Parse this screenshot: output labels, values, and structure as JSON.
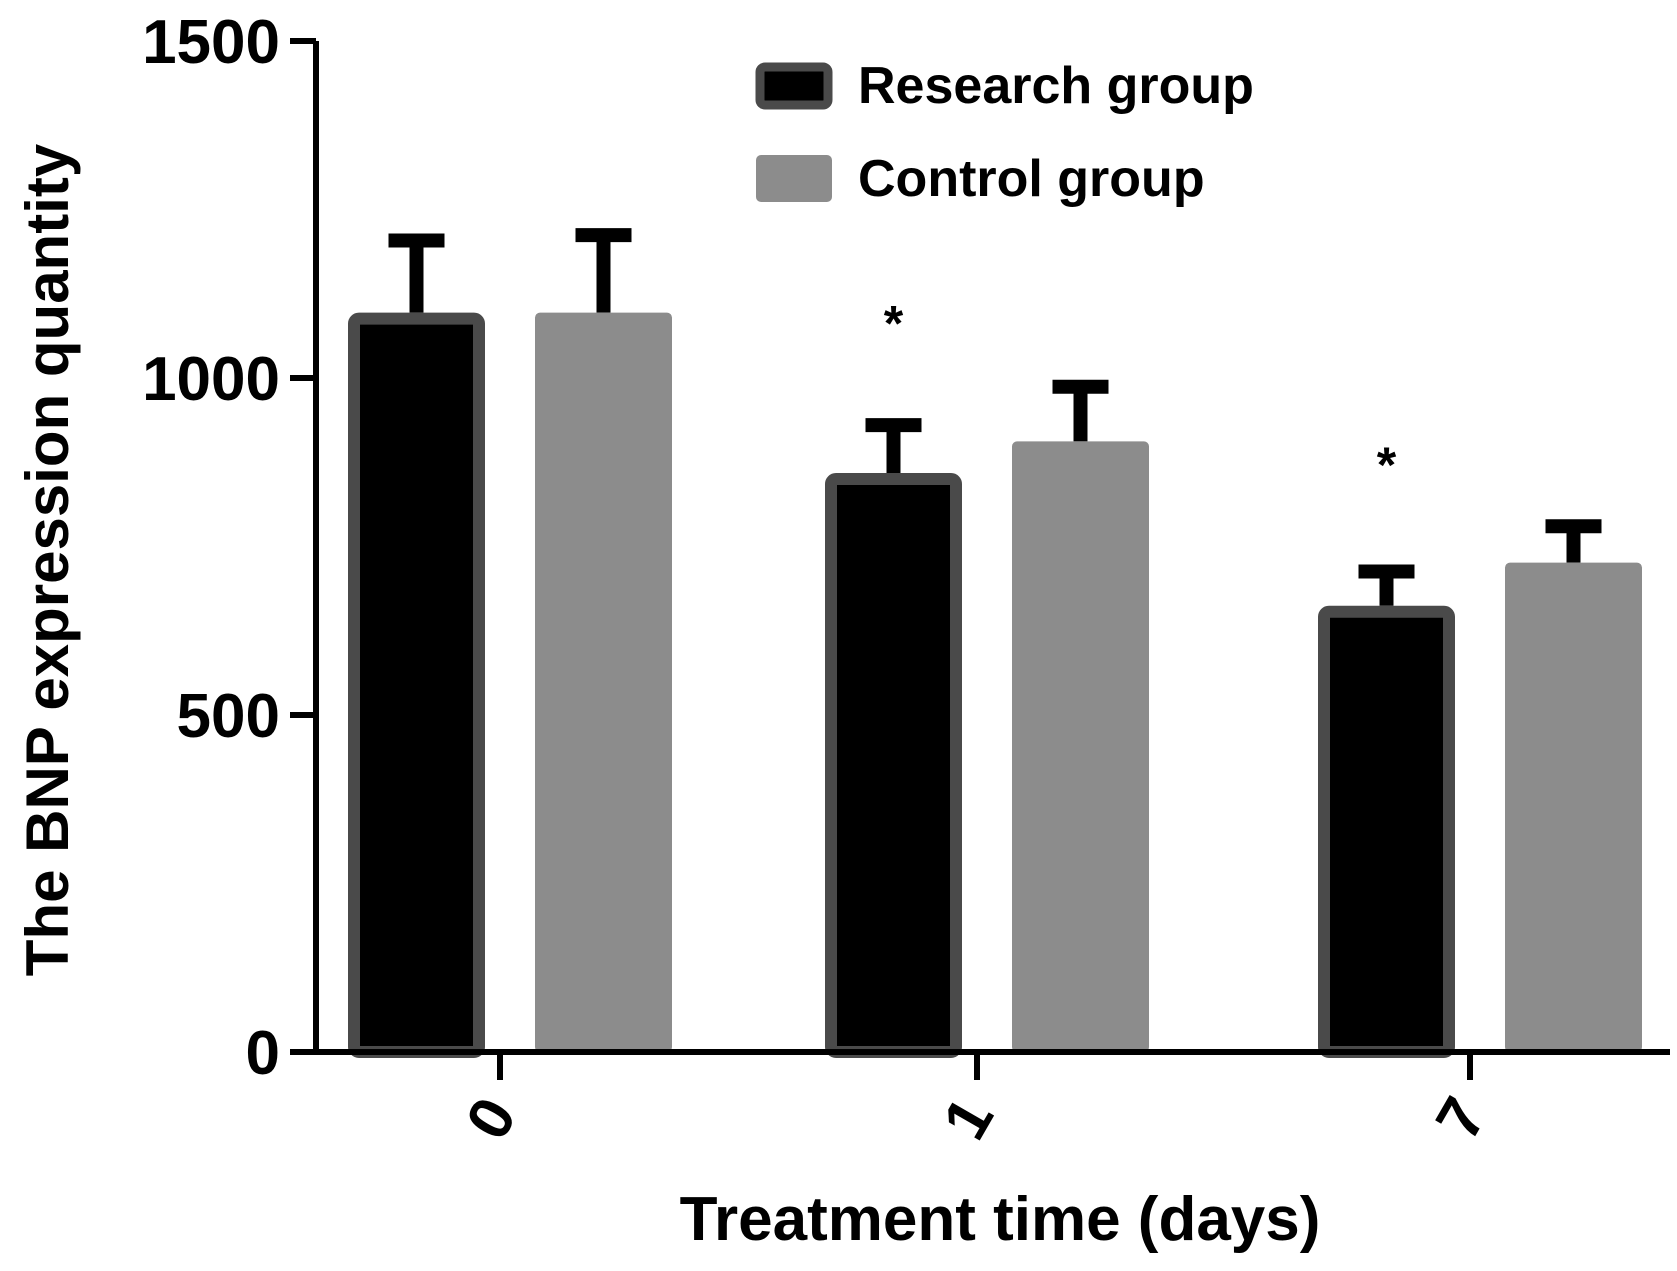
{
  "chart_data": {
    "type": "bar",
    "title": "",
    "xlabel": "Treatment time (days)",
    "ylabel": "The BNP expression quantity",
    "categories": [
      "0",
      "1",
      "7"
    ],
    "ylim": [
      0,
      1500
    ],
    "yticks": [
      "0",
      "500",
      "1000",
      "1500"
    ],
    "ytick_values": [
      0,
      500,
      1000,
      1500
    ],
    "legend_position": "top-right",
    "series": [
      {
        "name": "Research group",
        "color": "#000000",
        "edge": "#4a4a4a",
        "values": [
          1097,
          859,
          662
        ],
        "errors": [
          107,
          71,
          51
        ]
      },
      {
        "name": "Control group",
        "color": "#8c8c8c",
        "edge": "#8c8c8c",
        "values": [
          1097,
          906,
          726
        ],
        "errors": [
          115,
          81,
          54
        ]
      }
    ],
    "annotations": [
      {
        "text": "*",
        "category": "1",
        "series": "Research group",
        "value": 1100
      },
      {
        "text": "*",
        "category": "7",
        "series": "Research group",
        "value": 890
      }
    ]
  }
}
